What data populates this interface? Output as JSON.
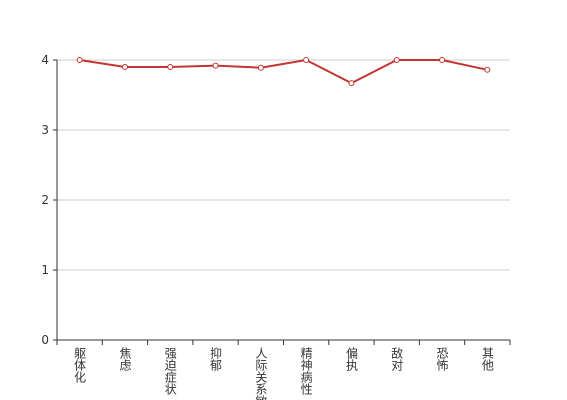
{
  "chart_data": {
    "type": "line",
    "categories": [
      "躯体化",
      "焦虑",
      "强迫症状",
      "抑郁",
      "人际关系敏感",
      "精神病性",
      "偏执",
      "敌对",
      "恐怖",
      "其他"
    ],
    "values": [
      4.0,
      3.9,
      3.9,
      3.92,
      3.89,
      4.0,
      3.67,
      4.0,
      4.0,
      3.86
    ],
    "color": "#c23531",
    "ylim": [
      0,
      4
    ],
    "yticks": [
      0,
      1,
      2,
      3,
      4
    ],
    "grid": true
  }
}
